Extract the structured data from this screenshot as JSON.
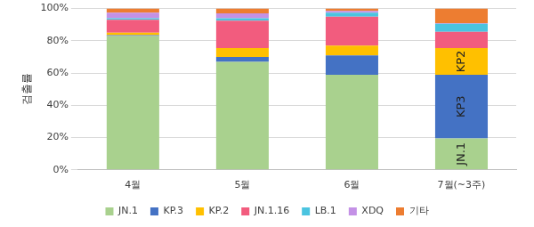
{
  "chart_data": {
    "type": "bar",
    "stacked": true,
    "grid": true,
    "legend": "bottom",
    "y_label": "검출률",
    "categories": [
      "4월",
      "5월",
      "6월",
      "7월(~3주)"
    ],
    "ylim": [
      0,
      100
    ],
    "yticks": [
      {
        "value": 0,
        "label": "0%"
      },
      {
        "value": 20,
        "label": "20%"
      },
      {
        "value": 40,
        "label": "40%"
      },
      {
        "value": 60,
        "label": "60%"
      },
      {
        "value": 80,
        "label": "80%"
      },
      {
        "value": 100,
        "label": "100%"
      }
    ],
    "series": [
      {
        "name": "JN.1",
        "color": "#a9d18e",
        "values": [
          83,
          67,
          59,
          19.5
        ]
      },
      {
        "name": "KP.3",
        "color": "#4472c4",
        "values": [
          0.5,
          3,
          12,
          39.5
        ]
      },
      {
        "name": "KP.2",
        "color": "#ffc000",
        "values": [
          1.5,
          5.5,
          6,
          16.5
        ]
      },
      {
        "name": "JN.1.16",
        "color": "#f25c7e",
        "values": [
          8,
          17,
          18,
          10
        ]
      },
      {
        "name": "LB.1",
        "color": "#4bc4e0",
        "values": [
          1,
          1.5,
          2.5,
          5
        ]
      },
      {
        "name": "XDQ",
        "color": "#c491e6",
        "values": [
          3.5,
          3,
          1,
          0.5
        ]
      },
      {
        "name": "기타",
        "color": "#ed7d31",
        "values": [
          2.5,
          3,
          1.5,
          9
        ]
      }
    ],
    "annotations": [
      {
        "text": "JN.1",
        "category": "7월(~3주)",
        "series": "JN.1"
      },
      {
        "text": "KP3",
        "category": "7월(~3주)",
        "series": "KP.3"
      },
      {
        "text": "KP2",
        "category": "7월(~3주)",
        "series": "KP.2"
      }
    ]
  }
}
